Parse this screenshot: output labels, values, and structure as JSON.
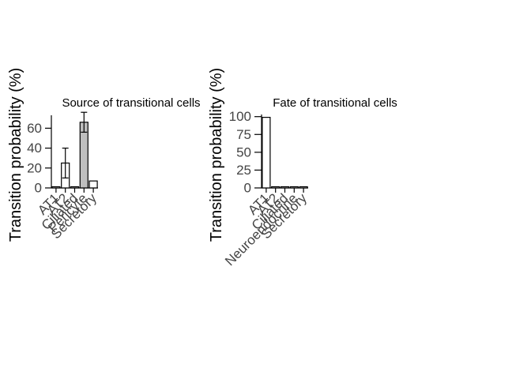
{
  "chart_data": [
    {
      "type": "bar",
      "title": "Source of transitional cells",
      "xlabel": "",
      "ylabel": "Transition probability (%)",
      "categories": [
        "AT1",
        "AT2",
        "Ciliated",
        "Pericyte",
        "Secretory"
      ],
      "values": [
        1,
        25,
        0,
        66,
        7
      ],
      "errors": [
        0,
        15,
        0,
        10,
        0
      ],
      "highlight": [
        false,
        false,
        false,
        true,
        false
      ],
      "yticks": [
        0,
        20,
        40,
        60
      ],
      "ylim": [
        0,
        73
      ],
      "grid": false
    },
    {
      "type": "bar",
      "title": "Fate of transitional cells",
      "xlabel": "",
      "ylabel": "Transition probability (%)",
      "categories": [
        "AT1",
        "AT2",
        "Ciliated",
        "Neuroendocrine",
        "Secretory"
      ],
      "values": [
        99,
        0.5,
        0.5,
        0.5,
        0.5
      ],
      "errors": [
        0,
        0,
        0,
        0,
        0
      ],
      "highlight": [
        false,
        false,
        false,
        false,
        false
      ],
      "yticks": [
        0,
        25,
        50,
        75,
        100
      ],
      "ylim": [
        0,
        103
      ],
      "grid": false
    }
  ],
  "colors": {
    "bar_fill": "#ffffff",
    "bar_highlight": "#bebebe",
    "stroke": "#000000"
  }
}
